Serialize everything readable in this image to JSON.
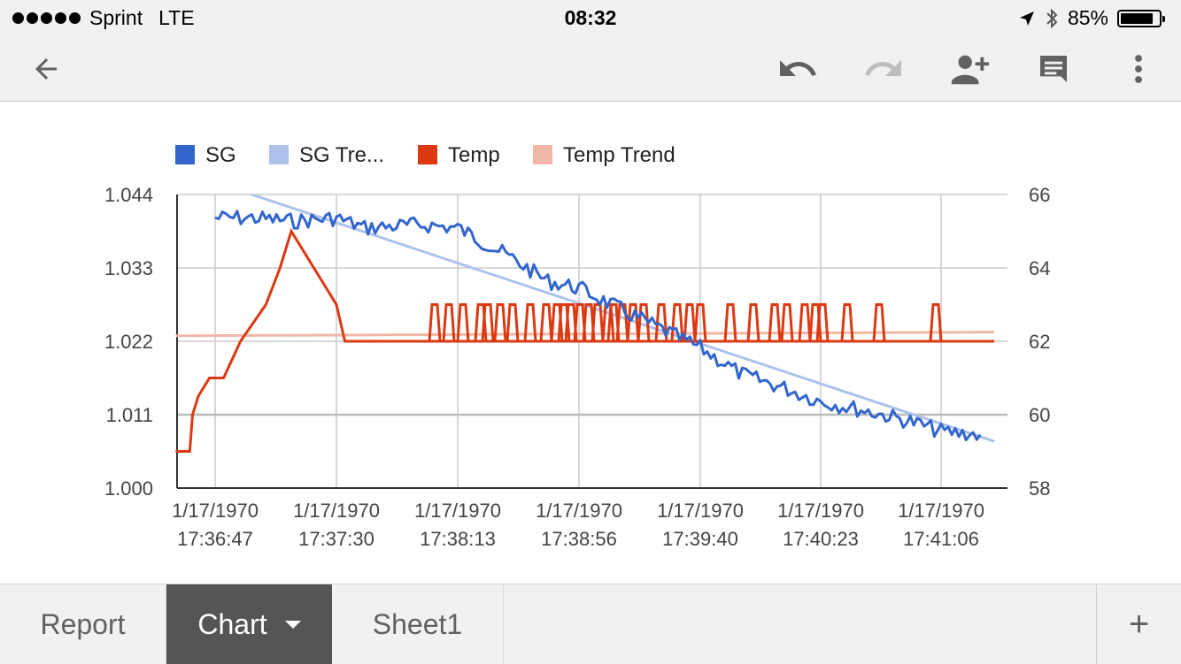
{
  "status_bar": {
    "carrier": "Sprint",
    "network": "LTE",
    "time": "08:32",
    "battery_percent": "85%",
    "battery_level": 0.85
  },
  "toolbar": {
    "back_icon": "arrow-left-icon",
    "undo_icon": "undo-icon",
    "redo_icon": "redo-icon",
    "share_icon": "person-add-icon",
    "comment_icon": "comment-icon",
    "more_icon": "more-vert-icon"
  },
  "chart_data": {
    "type": "line",
    "legend": [
      {
        "label": "SG",
        "color": "#3366cc"
      },
      {
        "label": "SG Tre...",
        "color": "#adc2eb"
      },
      {
        "label": "Temp",
        "color": "#dc3912"
      },
      {
        "label": "Temp Trend",
        "color": "#f1b7a6"
      }
    ],
    "legend_position": "top-left",
    "left_axis": {
      "ticks": [
        "1.044",
        "1.033",
        "1.022",
        "1.011",
        "1.000"
      ],
      "range": [
        1.0,
        1.044
      ]
    },
    "right_axis": {
      "ticks": [
        "66",
        "64",
        "62",
        "60",
        "58"
      ],
      "range": [
        58,
        66
      ]
    },
    "x_ticks": [
      {
        "date": "1/17/1970",
        "time": "17:36:47"
      },
      {
        "date": "1/17/1970",
        "time": "17:37:30"
      },
      {
        "date": "1/17/1970",
        "time": "17:38:13"
      },
      {
        "date": "1/17/1970",
        "time": "17:38:56"
      },
      {
        "date": "1/17/1970",
        "time": "17:39:40"
      },
      {
        "date": "1/17/1970",
        "time": "17:40:23"
      },
      {
        "date": "1/17/1970",
        "time": "17:41:06"
      }
    ],
    "grid": true,
    "series": [
      {
        "name": "SG",
        "axis": "left",
        "x": [
          "17:36:47",
          "17:37:00",
          "17:37:15",
          "17:37:30",
          "17:37:40",
          "17:38:00",
          "17:38:13",
          "17:38:30",
          "17:38:45",
          "17:38:56",
          "17:39:10",
          "17:39:25",
          "17:39:40",
          "17:39:55",
          "17:40:10",
          "17:40:23",
          "17:40:40",
          "17:40:55",
          "17:41:06",
          "17:41:20"
        ],
        "values": [
          1.0405,
          1.0405,
          1.04,
          1.0405,
          1.039,
          1.0395,
          1.039,
          1.035,
          1.031,
          1.03,
          1.027,
          1.024,
          1.021,
          1.017,
          1.015,
          1.013,
          1.0115,
          1.01,
          1.0085,
          1.008
        ]
      },
      {
        "name": "SG Tre...",
        "axis": "left",
        "x": [
          "17:37:00",
          "17:41:25"
        ],
        "values": [
          1.044,
          1.007
        ]
      },
      {
        "name": "Temp",
        "axis": "right",
        "x": [
          "17:36:33",
          "17:36:38",
          "17:36:39",
          "17:36:41",
          "17:36:45",
          "17:36:50",
          "17:36:56",
          "17:37:05",
          "17:37:10",
          "17:37:14",
          "17:37:30",
          "17:37:33",
          "17:38:00",
          "17:38:30",
          "17:39:00",
          "17:39:30",
          "17:39:40",
          "17:40:00",
          "17:40:23",
          "17:40:50",
          "17:41:25"
        ],
        "values": [
          59,
          59,
          60,
          60.5,
          61,
          61,
          62,
          63,
          64,
          65,
          63,
          62,
          62,
          62,
          62,
          62,
          62,
          62,
          62,
          62,
          62
        ]
      },
      {
        "name": "Temp Trend",
        "axis": "right",
        "x": [
          "17:36:33",
          "17:41:25"
        ],
        "values": [
          62.15,
          62.25
        ]
      }
    ]
  },
  "sheet_tabs": [
    {
      "label": "Report",
      "active": false
    },
    {
      "label": "Chart",
      "active": true
    },
    {
      "label": "Sheet1",
      "active": false
    }
  ],
  "add_sheet_label": "+"
}
